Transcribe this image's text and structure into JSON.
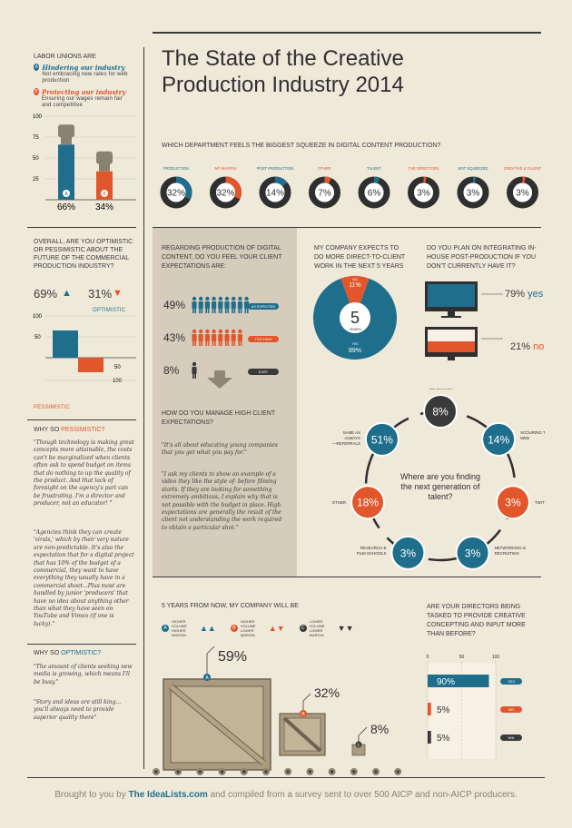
{
  "title": {
    "line1": "The State of the Creative",
    "line2": "Production Industry 2014"
  },
  "unions": {
    "heading": "LABOR UNIONS ARE",
    "a_label": "Hindering our industry",
    "a_desc": "Not embracing new rates for web production",
    "b_label": "Protecting our industry",
    "b_desc": "Ensuring our wages remain fair and competitive",
    "ticks": [
      "100",
      "75",
      "50",
      "25"
    ],
    "a_pct": "66%",
    "b_pct": "34%",
    "a_value": 66,
    "b_value": 34,
    "a_letter": "A",
    "b_letter": "B"
  },
  "optimism": {
    "question": "OVERALL, ARE YOU OPTIMISTIC OR PESSIMISTIC ABOUT THE FUTURE OF THE COMMERCIAL PRODUCTION INDUSTRY?",
    "opt_pct": "69%",
    "pes_pct": "31%",
    "opt_label": "OPTIMISTIC",
    "pes_label": "PESSIMISTIC",
    "ticks": [
      "100",
      "50",
      "50",
      "100"
    ]
  },
  "why_pes": {
    "heading_a": "WHY SO ",
    "heading_b": "PESSIMISTIC?",
    "quote1": "\"Though technology is making great concepts more attainable, the costs can't be marginalized when clients often ask to spend budget on items that do nothing to up the quality of the product. And that lack of foresight on the agency's part can be frustrating. I'm a director and producer, not an educator! \"",
    "quote2": "\"Agencies think they can create 'virals,' which by their very nature are non-predictable. It's also the expectation that for a digital project that has 10% of the budget of a commercial, they want to have everything they usually have in a commercial shoot...Plus most are handled by junior 'producers' that have no idea about anything other than what they have seen on YouTube and Vimeo (if one is lucky).\""
  },
  "why_opt": {
    "heading_a": "WHY SO ",
    "heading_b": "OPTIMISTIC?",
    "quote1": "\"The amount of clients seeking new media is growing, which means I'll be busy.\"",
    "quote2": "\"Story and ideas are still king... you'll always need to provide superior quality there\""
  },
  "departments": {
    "question": "WHICH DEPARTMENT FEELS THE BIGGEST SQUEEZE IN DIGITAL CONTENT PRODUCTION?",
    "items": [
      {
        "label": "PRODUCTION",
        "pct": "32%",
        "value": 32,
        "color": "#1f6e8c"
      },
      {
        "label": "MY MARGIN",
        "pct": "32%",
        "value": 32,
        "color": "#e2562b"
      },
      {
        "label": "POST PRODUCTION",
        "pct": "14%",
        "value": 14,
        "color": "#1f6e8c"
      },
      {
        "label": "OTHER",
        "pct": "7%",
        "value": 7,
        "color": "#e2562b"
      },
      {
        "label": "TALENT",
        "pct": "6%",
        "value": 6,
        "color": "#1f6e8c"
      },
      {
        "label": "THE DIRECTORS",
        "pct": "3%",
        "value": 3,
        "color": "#e2562b"
      },
      {
        "label": "NOT SQUEEZED",
        "pct": "3%",
        "value": 3,
        "color": "#1f6e8c"
      },
      {
        "label": "CREATIVE & TALENT",
        "pct": "3%",
        "value": 3,
        "color": "#e2562b"
      }
    ]
  },
  "expectations": {
    "question": "REGARDING PRODUCTION OF DIGITAL CONTENT, DO YOU FEEL YOUR CLIENT EXPECTATIONS ARE:",
    "rows": [
      {
        "pct": "49%",
        "tag": "AS EXPECTED",
        "color": "#1f6e8c",
        "count": 9
      },
      {
        "pct": "43%",
        "tag": "TOO HIGH",
        "color": "#e2562b",
        "count": 8
      },
      {
        "pct": "8%",
        "tag": "EASY",
        "color": "#3a3a3a",
        "count": 1
      }
    ]
  },
  "manage": {
    "question": "HOW DO YOU MANAGE HIGH CLIENT EXPECTATIONS?",
    "quote1": "\"It's all about educating young companies that you get what you pay for.\"",
    "quote2": "\"I ask my clients to show an example of a video they like the style of- before filming starts. If they are looking for something extremely ambitious, I explain why that is not possible with the budget in place. High expectations are generally the result of the client not understanding the work required to obtain a particular shot.\""
  },
  "direct": {
    "question": "MY COMPANY EXPECTS TO DO MORE DIRECT-TO-CLIENT WORK IN THE NEXT 5 YEARS",
    "center_num": "5",
    "center_unit": "YEARS",
    "no_pct": "11%",
    "no_label": "NO",
    "no_value": 11,
    "yes_pct": "89%",
    "yes_label": "YES",
    "yes_value": 89
  },
  "inhouse": {
    "question": "DO YOU PLAN ON INTEGRATING IN-HOUSE POST-PRODUCTION IF YOU DON'T CURRENTLY HAVE IT?",
    "yes_pct": "79%",
    "yes_label": "yes",
    "no_pct": "21%",
    "no_label": "no"
  },
  "talent": {
    "center": "Where are you finding the next generation of talent?",
    "nodes": [
      {
        "pct": "8%",
        "label": "BOTH WEB & REFERRALS",
        "color": "#3a3a3a"
      },
      {
        "pct": "14%",
        "label": "SCOURING THE WEB",
        "color": "#1f6e8c"
      },
      {
        "pct": "3%",
        "label": "TWITTER",
        "color": "#e2562b"
      },
      {
        "pct": "3%",
        "label": "NETWORKING & RECRUITING",
        "color": "#1f6e8c"
      },
      {
        "pct": "3%",
        "label": "RESEARCH & FILM SCHOOLS",
        "color": "#1f6e8c"
      },
      {
        "pct": "18%",
        "label": "OTHER",
        "color": "#e2562b"
      },
      {
        "pct": "51%",
        "label": "SAME AS ALWAYS —REFERRALS",
        "color": "#1f6e8c"
      }
    ]
  },
  "fiveyears": {
    "question": "5 YEARS FROM NOW, MY COMPANY WILL BE",
    "legend": [
      {
        "letter": "A",
        "text": "HIGHER VOLUME HIGHER MARGIN"
      },
      {
        "letter": "B",
        "text": "HIGHER VOLUME LOWER MARGIN"
      },
      {
        "letter": "C",
        "text": "LOWER VOLUME LOWER MARGIN"
      }
    ],
    "a_pct": "59%",
    "b_pct": "32%",
    "c_pct": "8%"
  },
  "directors": {
    "question": "ARE YOUR DIRECTORS BEING TASKED TO PROVIDE CREATIVE CONCEPTING AND INPUT MORE THAN BEFORE?",
    "ticks": [
      "0",
      "50",
      "100"
    ],
    "rows": [
      {
        "pct": "90%",
        "tag": "YES",
        "value": 90,
        "color": "#1f6e8c"
      },
      {
        "pct": "5%",
        "tag": "NO",
        "value": 5,
        "color": "#e2562b"
      },
      {
        "pct": "5%",
        "tag": "N/A",
        "value": 5,
        "color": "#3a3a3a"
      }
    ]
  },
  "footer": {
    "pre": "Brought to you by ",
    "brand": "The IdeaLists.com",
    "post": " and compiled from a survey sent to over 500 AICP and non-AICP producers."
  }
}
